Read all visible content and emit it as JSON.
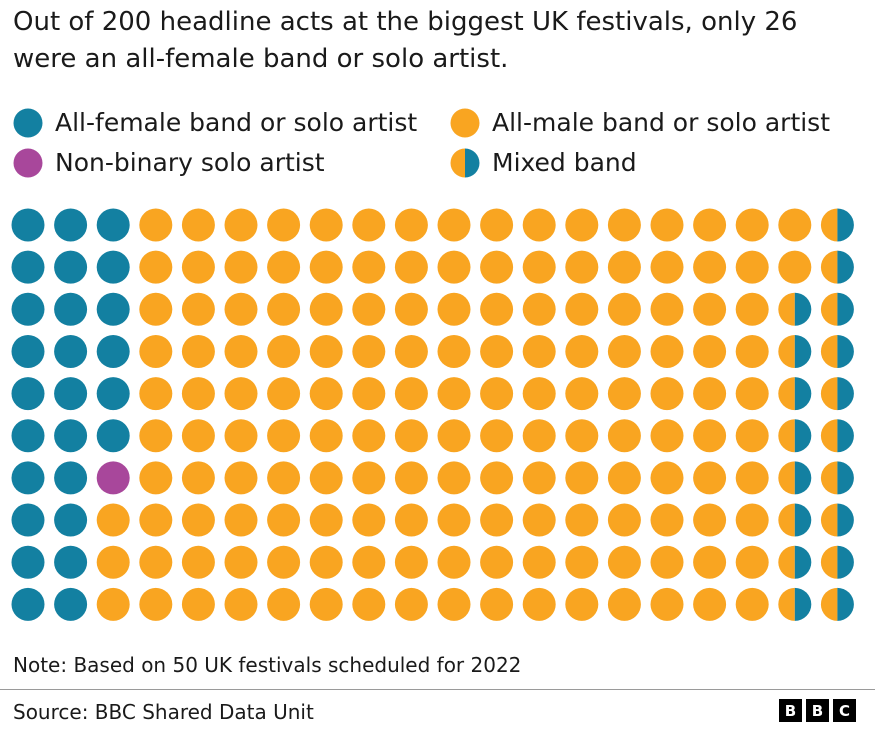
{
  "title": "Out of 200 headline acts at the biggest UK festivals, only 26 were an all-female band or solo artist.",
  "legend": [
    {
      "label": "All-female band or solo artist",
      "key": "female"
    },
    {
      "label": "All-male band or solo artist",
      "key": "male"
    },
    {
      "label": "Non-binary solo artist",
      "key": "nonbinary"
    },
    {
      "label": "Mixed band",
      "key": "mixed"
    }
  ],
  "colors": {
    "female": "#1380a1",
    "male": "#f9a521",
    "nonbinary": "#a8479b",
    "mixed_left": "#f9a521",
    "mixed_right": "#1380a1"
  },
  "note": "Note: Based on 50 UK festivals scheduled for 2022",
  "source": "Source: BBC Shared Data Unit",
  "logo_letters": [
    "B",
    "B",
    "C"
  ],
  "chart_data": {
    "type": "waffle",
    "total": 200,
    "rows": 10,
    "columns": 20,
    "fill_order": "column-major, top to bottom within each column",
    "categories": [
      "All-female band or solo artist",
      "Non-binary solo artist",
      "All-male band or solo artist",
      "Mixed band"
    ],
    "values": [
      26,
      1,
      155,
      18
    ]
  }
}
